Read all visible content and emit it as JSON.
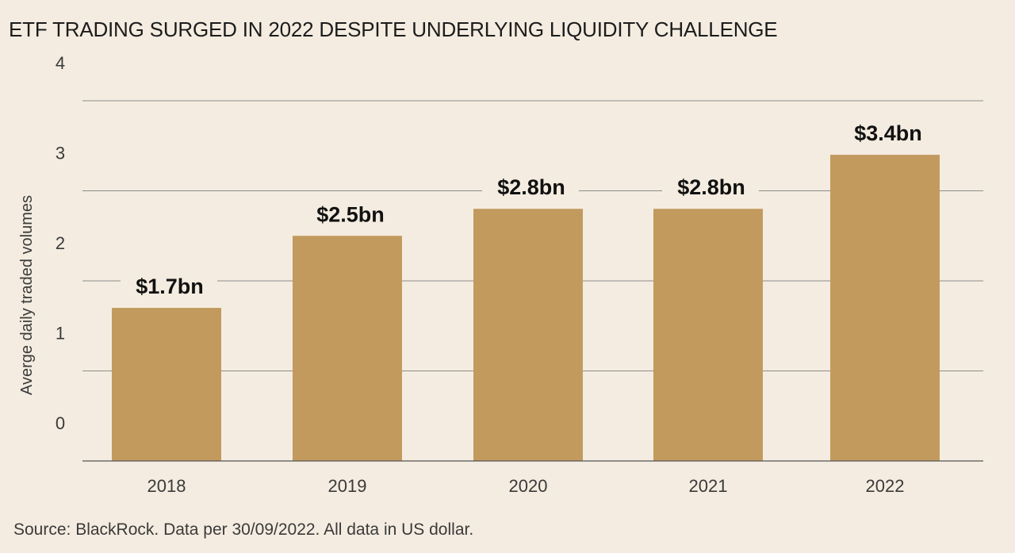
{
  "chart_data": {
    "type": "bar",
    "title": "ETF TRADING SURGED IN 2022 DESPITE UNDERLYING LIQUIDITY CHALLENGE",
    "xlabel": "",
    "ylabel": "Averge daily traded volumes",
    "categories": [
      "2018",
      "2019",
      "2020",
      "2021",
      "2022"
    ],
    "values": [
      1.7,
      2.5,
      2.8,
      2.8,
      3.4
    ],
    "data_labels": [
      "$1.7bn",
      "$2.5bn",
      "$2.8bn",
      "$2.8bn",
      "$3.4bn"
    ],
    "y_ticks": [
      {
        "value": 0,
        "label": "0"
      },
      {
        "value": 1,
        "label": "1"
      },
      {
        "value": 2,
        "label": "2"
      },
      {
        "value": 3,
        "label": "3"
      },
      {
        "value": 4,
        "label": "4"
      }
    ],
    "ylim": [
      0,
      4
    ],
    "grid": true,
    "legend": "none",
    "source": "Source: BlackRock. Data per 30/09/2022. All data in US dollar."
  },
  "colors": {
    "background": "#f4ece0",
    "bar": "#c39a5e",
    "gridline": "#8c8c8c",
    "axis": "#555555",
    "text": "#222222"
  }
}
